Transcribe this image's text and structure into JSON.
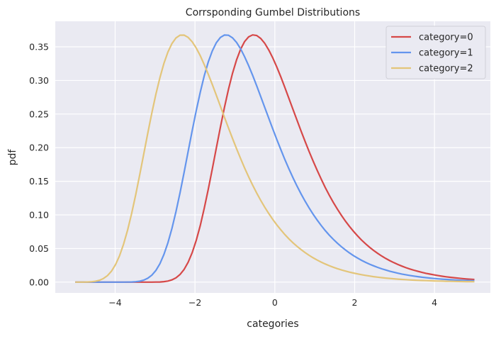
{
  "chart_data": {
    "type": "line",
    "title": "Corrsponding Gumbel Distributions",
    "xlabel": "categories",
    "ylabel": "pdf",
    "xlim": [
      -5.5,
      5.4
    ],
    "ylim": [
      -0.016,
      0.388
    ],
    "xticks": [
      -4,
      -2,
      0,
      2,
      4
    ],
    "xtick_labels": [
      "−4",
      "−2",
      "0",
      "2",
      "4"
    ],
    "yticks": [
      0.0,
      0.05,
      0.1,
      0.15,
      0.2,
      0.25,
      0.3,
      0.35
    ],
    "ytick_labels": [
      "0.00",
      "0.05",
      "0.10",
      "0.15",
      "0.20",
      "0.25",
      "0.30",
      "0.35"
    ],
    "grid": true,
    "legend_position": "top-right",
    "x_range": [
      -5,
      5
    ],
    "n_points": 100,
    "series": [
      {
        "name": "category=0",
        "distribution": "gumbel",
        "loc": -0.53,
        "scale": 1,
        "color": "#d64848"
      },
      {
        "name": "category=1",
        "distribution": "gumbel",
        "loc": -1.22,
        "scale": 1,
        "color": "#6495ed"
      },
      {
        "name": "category=2",
        "distribution": "gumbel",
        "loc": -2.32,
        "scale": 1,
        "color": "#e3c57a"
      }
    ]
  }
}
